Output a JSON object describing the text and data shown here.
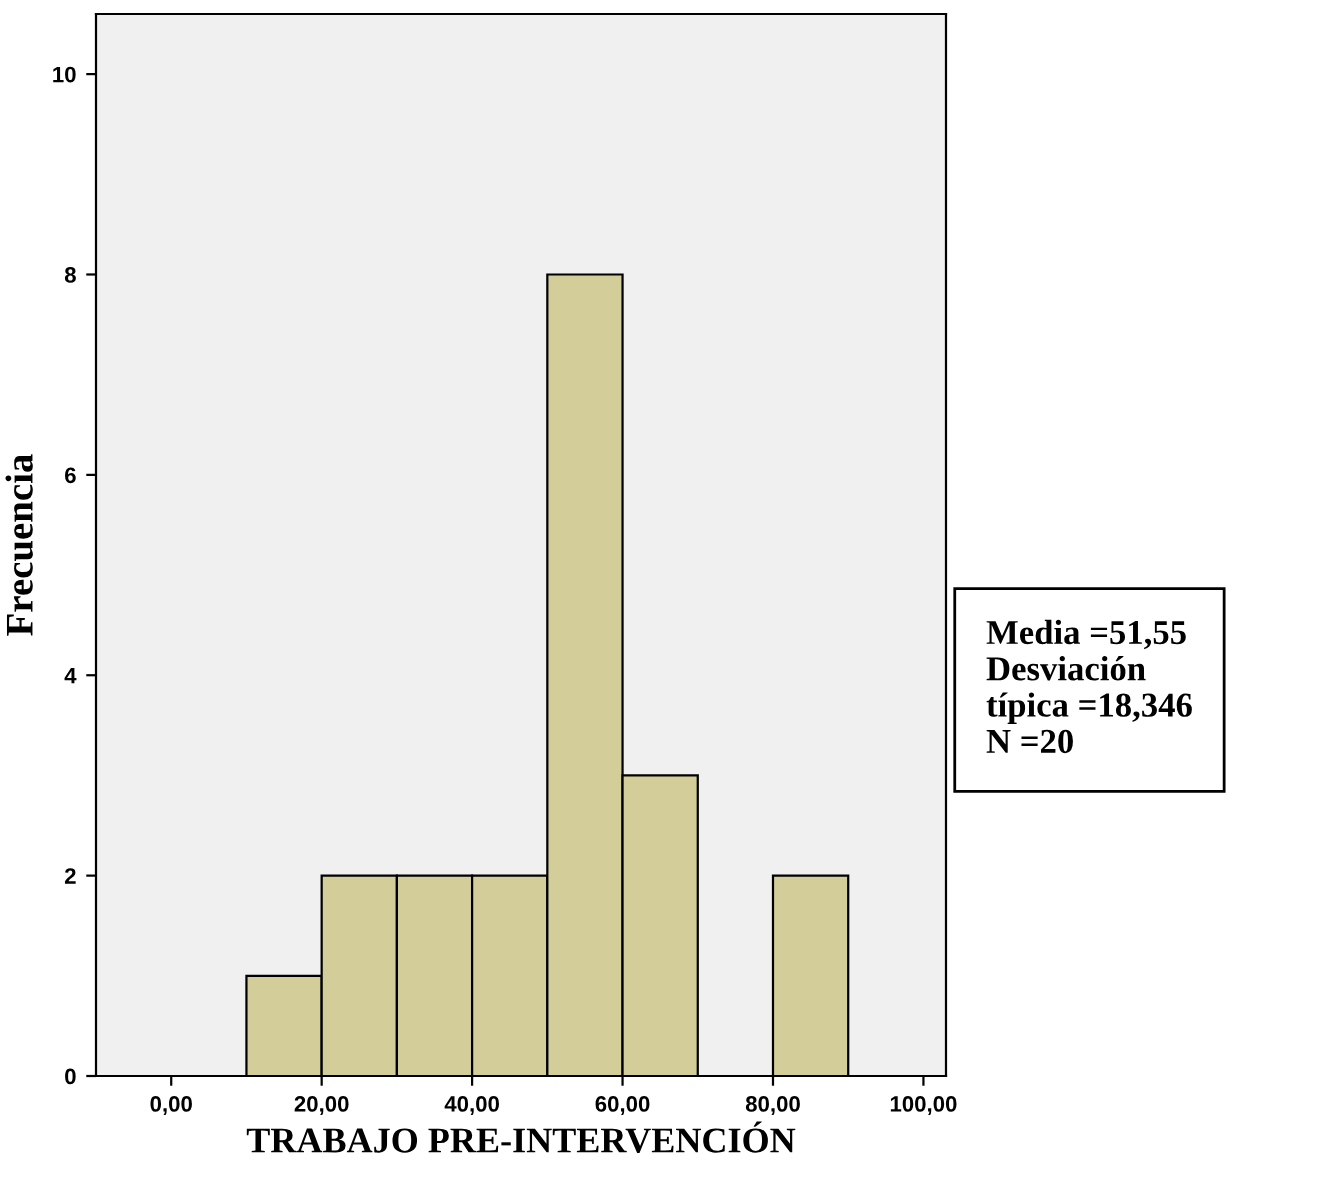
{
  "chart_data": {
    "type": "histogram",
    "xlabel": "TRABAJO PRE-INTERVENCIÓN",
    "ylabel": "Frecuencia",
    "bins": [
      10,
      20,
      30,
      40,
      50,
      60,
      70,
      80,
      90
    ],
    "values": [
      1,
      2,
      2,
      2,
      8,
      3,
      0,
      2
    ],
    "color": "#d3ce99",
    "xlim": [
      -10,
      103
    ],
    "ylim": [
      0,
      10.6
    ],
    "xticks": [
      {
        "value": 0,
        "label": "0,00"
      },
      {
        "value": 20,
        "label": "20,00"
      },
      {
        "value": 40,
        "label": "40,00"
      },
      {
        "value": 60,
        "label": "60,00"
      },
      {
        "value": 80,
        "label": "80,00"
      },
      {
        "value": 100,
        "label": "100,00"
      }
    ],
    "yticks": [
      0,
      2,
      4,
      6,
      8,
      10
    ],
    "grid": false,
    "annotations": [
      "Media =51,55\nDesviación\ntípica =18,346\nN =20"
    ]
  }
}
